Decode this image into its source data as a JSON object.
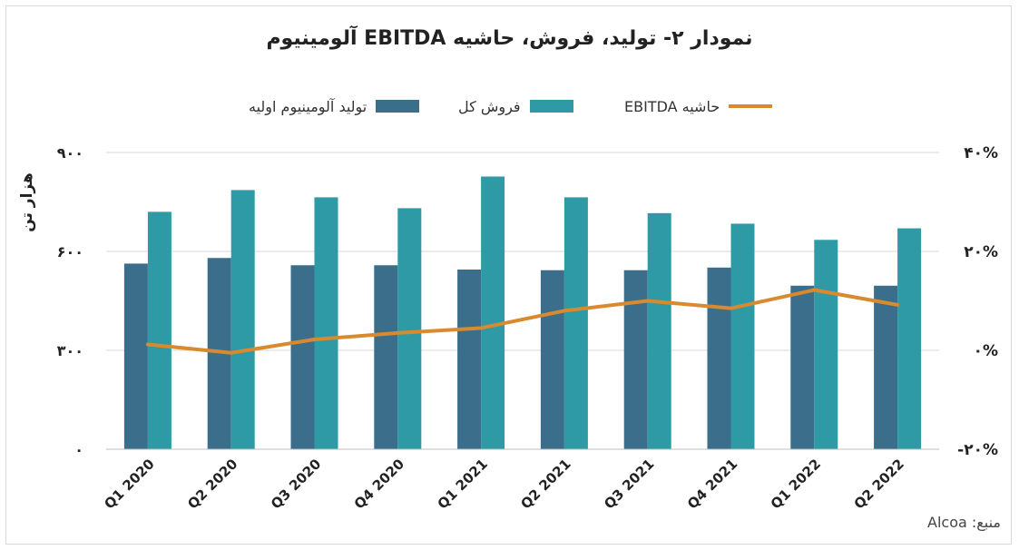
{
  "title": "نمودار ۲- تولید، فروش، حاشیه EBITDA آلومینیوم",
  "source": "منبع: Alcoa",
  "colors": {
    "production": "#3b6e8a",
    "sales": "#2e9aa6",
    "ebitda": "#d98a2f",
    "grid": "#d9d9d9"
  },
  "chart_data": {
    "type": "bar",
    "categories": [
      "Q1 2020",
      "Q2 2020",
      "Q3 2020",
      "Q4 2020",
      "Q1 2021",
      "Q2 2021",
      "Q3 2021",
      "Q4 2021",
      "Q1 2022",
      "Q2 2022"
    ],
    "series": [
      {
        "name": "تولید آلومینیوم اولیه",
        "type": "bar",
        "axis": "left",
        "values": [
          563,
          580,
          558,
          558,
          545,
          543,
          543,
          551,
          496,
          496
        ]
      },
      {
        "name": "فروش کل",
        "type": "bar",
        "axis": "left",
        "values": [
          720,
          786,
          764,
          731,
          827,
          764,
          716,
          684,
          635,
          670
        ]
      },
      {
        "name": "حاشیه EBITDA",
        "type": "line",
        "axis": "right",
        "values": [
          1.2,
          -0.5,
          2.2,
          3.5,
          4.5,
          8.0,
          10.0,
          8.5,
          12.2,
          9.2
        ]
      }
    ],
    "ylabel": "هزار تن",
    "ylim": [
      0,
      900
    ],
    "yticks": [
      0,
      300,
      600,
      900
    ],
    "ytick_labels": [
      "۰",
      "۳۰۰",
      "۶۰۰",
      "۹۰۰"
    ],
    "y2lim": [
      -20,
      40
    ],
    "y2ticks": [
      -20,
      0,
      20,
      40
    ],
    "y2tick_labels": [
      "-۲۰%",
      "۰%",
      "۲۰%",
      "۴۰%"
    ],
    "grid": true,
    "legend_position": "top"
  }
}
